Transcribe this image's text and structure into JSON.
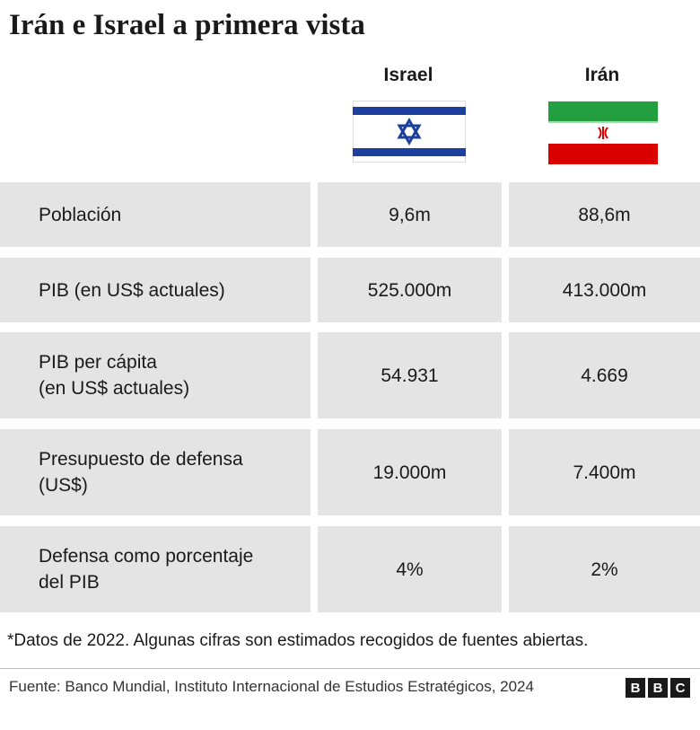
{
  "title": "Irán e Israel a primera vista",
  "table": {
    "columns": [
      "Israel",
      "Irán"
    ],
    "rows": [
      [
        "Población",
        "9,6m",
        "88,6m"
      ],
      [
        "PIB (en US$ actuales)",
        "525.000m",
        "413.000m"
      ],
      [
        "PIB per cápita\n(en US$ actuales)",
        "54.931",
        "4.669"
      ],
      [
        "Presupuesto de defensa\n(US$)",
        "19.000m",
        "7.400m"
      ],
      [
        "Defensa como porcentaje\ndel PIB",
        "4%",
        "2%"
      ]
    ]
  },
  "footnote": "*Datos de 2022. Algunas cifras son estimados recogidos de fuentes abiertas.",
  "source": "Fuente: Banco Mundial, Instituto Internacional de Estudios Estratégicos, 2024",
  "logo": [
    "B",
    "B",
    "C"
  ]
}
